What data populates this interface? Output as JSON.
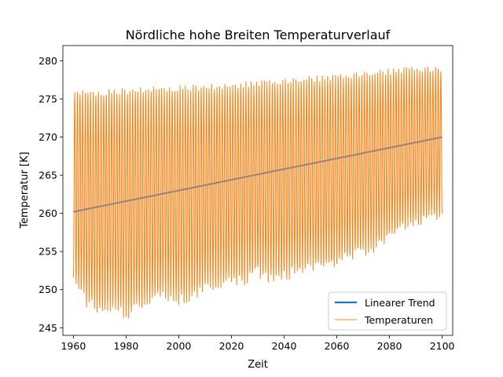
{
  "chart_data": {
    "type": "line",
    "title": "Nördliche hohe Breiten Temperaturverlauf",
    "xlabel": "Zeit",
    "ylabel": "Temperatur [K]",
    "xlim": [
      1956,
      2104
    ],
    "ylim": [
      244,
      282
    ],
    "xticks": [
      1960,
      1980,
      2000,
      2020,
      2040,
      2060,
      2080,
      2100
    ],
    "yticks": [
      245,
      250,
      255,
      260,
      265,
      270,
      275,
      280
    ],
    "grid": false,
    "legend_position": "bottom-right",
    "series": [
      {
        "name": "Linearer Trend",
        "kind": "trend",
        "color": "#1f77b4",
        "x": [
          1960,
          2100
        ],
        "y": [
          260.2,
          270.0
        ]
      },
      {
        "name": "Temperaturen",
        "kind": "seasonal",
        "color": "#ff7f0e",
        "x_start": 1960,
        "x_end": 2100,
        "peaks": [
          [
            1960,
            276.4
          ],
          [
            1970,
            276.2
          ],
          [
            1980,
            276.4
          ],
          [
            1990,
            276.8
          ],
          [
            2000,
            276.8
          ],
          [
            2010,
            277.0
          ],
          [
            2020,
            277.2
          ],
          [
            2030,
            277.4
          ],
          [
            2040,
            277.6
          ],
          [
            2050,
            278.0
          ],
          [
            2060,
            278.2
          ],
          [
            2070,
            278.6
          ],
          [
            2080,
            279.0
          ],
          [
            2090,
            279.3
          ],
          [
            2100,
            279.2
          ]
        ],
        "troughs": [
          [
            1960,
            250.7
          ],
          [
            1965,
            247.6
          ],
          [
            1970,
            246.5
          ],
          [
            1975,
            247.3
          ],
          [
            1980,
            246.0
          ],
          [
            1985,
            247.0
          ],
          [
            1990,
            248.0
          ],
          [
            1995,
            248.5
          ],
          [
            2000,
            248.0
          ],
          [
            2005,
            248.2
          ],
          [
            2010,
            249.5
          ],
          [
            2015,
            250.0
          ],
          [
            2020,
            250.5
          ],
          [
            2025,
            250.5
          ],
          [
            2030,
            251.5
          ],
          [
            2035,
            250.8
          ],
          [
            2040,
            251.0
          ],
          [
            2045,
            251.8
          ],
          [
            2050,
            252.0
          ],
          [
            2055,
            252.2
          ],
          [
            2060,
            252.5
          ],
          [
            2065,
            253.8
          ],
          [
            2070,
            254.0
          ],
          [
            2075,
            255.0
          ],
          [
            2080,
            256.2
          ],
          [
            2085,
            257.5
          ],
          [
            2090,
            257.8
          ],
          [
            2095,
            258.5
          ],
          [
            2100,
            259.5
          ]
        ]
      }
    ]
  }
}
